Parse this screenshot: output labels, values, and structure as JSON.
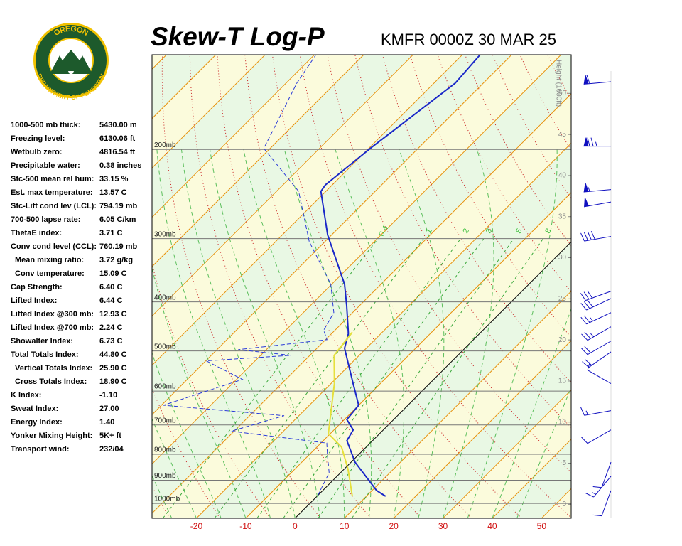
{
  "logo": {
    "top": "OREGON",
    "bottom": "DEPARTMENT OF FORESTRY"
  },
  "indices": [
    {
      "label": "1000-500 mb thick:",
      "value": "5430.00 m"
    },
    {
      "label": "Freezing level:",
      "value": "6130.06 ft"
    },
    {
      "label": "Wetbulb zero:",
      "value": "4816.54 ft"
    },
    {
      "label": "Precipitable water:",
      "value": "0.38 inches"
    },
    {
      "label": "Sfc-500 mean rel hum:",
      "value": "33.15 %"
    },
    {
      "label": "Est. max temperature:",
      "value": "13.57 C"
    },
    {
      "label": "Sfc-Lift cond lev (LCL):",
      "value": "794.19 mb"
    },
    {
      "label": "700-500 lapse rate:",
      "value": "6.05 C/km"
    },
    {
      "label": "ThetaE index:",
      "value": "3.71 C"
    },
    {
      "label": "Conv cond level (CCL):",
      "value": "760.19 mb"
    },
    {
      "label": "Mean mixing ratio:",
      "value": "3.72 g/kg"
    },
    {
      "label": "Conv temperature:",
      "value": "15.09 C"
    },
    {
      "label": "Cap Strength:",
      "value": "6.40 C"
    },
    {
      "label": "Lifted Index:",
      "value": "6.44 C"
    },
    {
      "label": "Lifted Index @300 mb:",
      "value": "12.93 C"
    },
    {
      "label": "Lifted Index @700 mb:",
      "value": "2.24 C"
    },
    {
      "label": "Showalter Index:",
      "value": "6.73 C"
    },
    {
      "label": "Total Totals Index:",
      "value": "44.80 C"
    },
    {
      "label": "Vertical Totals Index:",
      "value": "25.90 C"
    },
    {
      "label": "Cross Totals Index:",
      "value": "18.90 C"
    },
    {
      "label": "K Index:",
      "value": "-1.10"
    },
    {
      "label": "Sweat Index:",
      "value": "27.00"
    },
    {
      "label": "Energy Index:",
      "value": "1.40"
    },
    {
      "label": "Yonker Mixing Height:",
      "value": "5K+ ft"
    },
    {
      "label": "Transport wind:",
      "value": "232/04"
    }
  ],
  "chart_data": {
    "type": "skewt",
    "title": "Skew-T Log-P",
    "subtitle": "KMFR 0000Z 30 MAR 25",
    "y2_label": "Height (1000ft)",
    "xlim": [
      -29,
      56
    ],
    "xticks": [
      -20,
      -10,
      0,
      10,
      20,
      30,
      40,
      50
    ],
    "ylim": [
      1070,
      130
    ],
    "log_y": true,
    "yticks": [
      {
        "value": 1000,
        "label": "1000mb"
      },
      {
        "value": 900,
        "label": "900mb"
      },
      {
        "value": 800,
        "label": "800mb"
      },
      {
        "value": 700,
        "label": "700mb"
      },
      {
        "value": 600,
        "label": "600mb"
      },
      {
        "value": 500,
        "label": "500mb"
      },
      {
        "value": 400,
        "label": "400mb"
      },
      {
        "value": 300,
        "label": "300mb"
      },
      {
        "value": 200,
        "label": "200mb"
      }
    ],
    "y2lim": [
      -1.7,
      54.7
    ],
    "y2ticks": [
      0,
      5,
      10,
      15,
      20,
      25,
      30,
      35,
      40,
      45,
      50
    ],
    "mixing_ratios": [
      0.4,
      1,
      2,
      3,
      5,
      8
    ],
    "isotherm_color": "#e8900a",
    "freezing_color": "#000000",
    "series": [
      {
        "color": "#1a28c8",
        "dash": false,
        "pressure": [
          968,
          943,
          829,
          752,
          716,
          683,
          640,
          580,
          494,
          462,
          407,
          369,
          295,
          242,
          235,
          199,
          148,
          130
        ],
        "values": [
          13.9,
          10.9,
          0.8,
          -5.2,
          -6.1,
          -9.5,
          -10,
          -15.5,
          -24.4,
          -26.6,
          -32.6,
          -37.4,
          -50.8,
          -61,
          -61.4,
          -59.7,
          -55.7,
          -56.4
        ]
      },
      {
        "color": "#2a3ad8",
        "dash": true,
        "pressure": [
          965,
          870,
          800,
          760,
          720,
          671,
          640,
          569,
          523,
          510,
          497,
          475,
          455,
          420,
          369,
          304,
          242,
          199,
          148,
          130
        ],
        "values": [
          0,
          -2.3,
          -6.4,
          -8.8,
          -30.6,
          -23,
          -49.6,
          -38.8,
          -49.9,
          -33.8,
          -45.7,
          -29.7,
          -32.3,
          -33.8,
          -40.2,
          -53.2,
          -65.5,
          -81.3,
          -87.8,
          -89.7
        ]
      },
      {
        "color": "#e6e03c",
        "dash": false,
        "pressure": [
          965,
          856,
          774,
          728,
          580,
          510,
          459
        ],
        "values": [
          7,
          0.8,
          -5,
          -10.4,
          -19.3,
          -25.1,
          -26.1
        ]
      }
    ],
    "winds": {
      "pressure": [
        147,
        197,
        240,
        254,
        297,
        381,
        394,
        420,
        448,
        478,
        502,
        580,
        656,
        716,
        829,
        884,
        943
      ],
      "direction": [
        265,
        270,
        265,
        260,
        260,
        250,
        245,
        245,
        240,
        240,
        235,
        300,
        260,
        240,
        200,
        220,
        200
      ],
      "speed": [
        60,
        75,
        55,
        50,
        40,
        30,
        30,
        25,
        25,
        20,
        20,
        10,
        15,
        10,
        10,
        15,
        10
      ],
      "color": "#1010c0"
    }
  }
}
